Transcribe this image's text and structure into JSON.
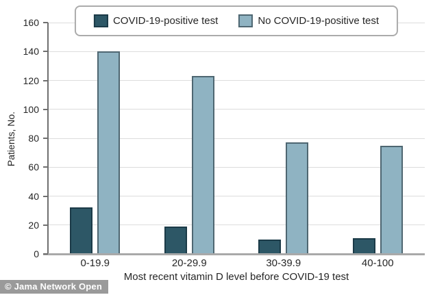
{
  "chart_data": {
    "type": "bar",
    "title": "",
    "categories": [
      "0-19.9",
      "20-29.9",
      "30-39.9",
      "40-100"
    ],
    "series": [
      {
        "name": "COVID-19-positive test",
        "values": [
          32,
          19,
          10,
          11
        ],
        "fill": "#2d5766",
        "border": "#1b3a47"
      },
      {
        "name": "No COVID-19-positive test",
        "values": [
          140,
          123,
          77,
          75
        ],
        "fill": "#8fb3c2",
        "border": "#4e6671"
      }
    ],
    "xlabel": "Most recent vitamin D level before COVID-19 test",
    "ylabel": "Patients, No.",
    "ylim": [
      0,
      160
    ],
    "ytick_step": 20,
    "grid": true,
    "legend_position": "top-center"
  },
  "watermark": {
    "text": "© Jama Network Open"
  }
}
